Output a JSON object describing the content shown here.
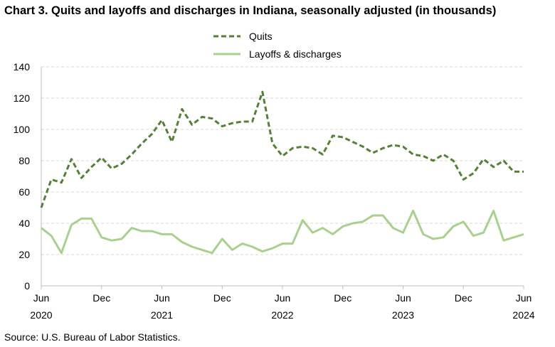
{
  "chart_data": {
    "type": "line",
    "title": "Chart 3. Quits and layoffs and discharges in Indiana, seasonally adjusted (in thousands)",
    "source": "Source: U.S. Bureau of Labor Statistics.",
    "x_start": "2020-06",
    "x": [
      "2020-06",
      "2020-07",
      "2020-08",
      "2020-09",
      "2020-10",
      "2020-11",
      "2020-12",
      "2021-01",
      "2021-02",
      "2021-03",
      "2021-04",
      "2021-05",
      "2021-06",
      "2021-07",
      "2021-08",
      "2021-09",
      "2021-10",
      "2021-11",
      "2021-12",
      "2022-01",
      "2022-02",
      "2022-03",
      "2022-04",
      "2022-05",
      "2022-06",
      "2022-07",
      "2022-08",
      "2022-09",
      "2022-10",
      "2022-11",
      "2022-12",
      "2023-01",
      "2023-02",
      "2023-03",
      "2023-04",
      "2023-05",
      "2023-06",
      "2023-07",
      "2023-08",
      "2023-09",
      "2023-10",
      "2023-11",
      "2023-12",
      "2024-01",
      "2024-02",
      "2024-03",
      "2024-04",
      "2024-05",
      "2024-06"
    ],
    "x_tick_labels": [
      {
        "month": "Jun",
        "year": "2020",
        "index": 0
      },
      {
        "month": "Dec",
        "year": "",
        "index": 6
      },
      {
        "month": "Jun",
        "year": "2021",
        "index": 12
      },
      {
        "month": "Dec",
        "year": "",
        "index": 18
      },
      {
        "month": "Jun",
        "year": "2022",
        "index": 24
      },
      {
        "month": "Dec",
        "year": "",
        "index": 30
      },
      {
        "month": "Jun",
        "year": "2023",
        "index": 36
      },
      {
        "month": "Dec",
        "year": "",
        "index": 42
      },
      {
        "month": "Jun",
        "year": "2024",
        "index": 48
      }
    ],
    "y_ticks": [
      "0",
      "20",
      "40",
      "60",
      "80",
      "100",
      "120",
      "140"
    ],
    "ylim": [
      0,
      140
    ],
    "grid": true,
    "legend_placement": "top-center",
    "series": [
      {
        "name": "Quits",
        "style": "dashed",
        "color": "#548235",
        "values": [
          50,
          68,
          66,
          81,
          69,
          76,
          82,
          75,
          78,
          84,
          91,
          97,
          106,
          92,
          113,
          103,
          108,
          107,
          102,
          104,
          105,
          105,
          124,
          91,
          83,
          88,
          89,
          88,
          84,
          96,
          95,
          92,
          89,
          85,
          88,
          90,
          89,
          84,
          83,
          80,
          84,
          80,
          68,
          72,
          81,
          76,
          80,
          73,
          73
        ]
      },
      {
        "name": "Layoffs & discharges",
        "style": "solid",
        "color": "#a9d18e",
        "values": [
          37,
          32,
          21,
          39,
          43,
          43,
          31,
          29,
          30,
          37,
          35,
          35,
          33,
          33,
          28,
          25,
          23,
          21,
          30,
          23,
          27,
          25,
          22,
          24,
          27,
          27,
          42,
          34,
          37,
          33,
          38,
          40,
          41,
          45,
          45,
          37,
          34,
          48,
          33,
          30,
          31,
          38,
          41,
          32,
          34,
          48,
          29,
          31,
          33
        ]
      }
    ]
  }
}
